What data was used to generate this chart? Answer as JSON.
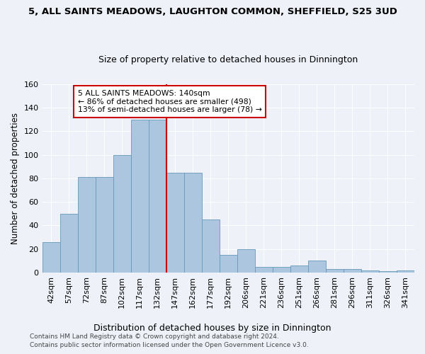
{
  "title_line1": "5, ALL SAINTS MEADOWS, LAUGHTON COMMON, SHEFFIELD, S25 3UD",
  "title_line2": "Size of property relative to detached houses in Dinnington",
  "xlabel": "Distribution of detached houses by size in Dinnington",
  "ylabel": "Number of detached properties",
  "footer_line1": "Contains HM Land Registry data © Crown copyright and database right 2024.",
  "footer_line2": "Contains public sector information licensed under the Open Government Licence v3.0.",
  "bin_labels": [
    "42sqm",
    "57sqm",
    "72sqm",
    "87sqm",
    "102sqm",
    "117sqm",
    "132sqm",
    "147sqm",
    "162sqm",
    "177sqm",
    "192sqm",
    "206sqm",
    "221sqm",
    "236sqm",
    "251sqm",
    "266sqm",
    "281sqm",
    "296sqm",
    "311sqm",
    "326sqm",
    "341sqm"
  ],
  "bar_heights": [
    26,
    50,
    81,
    81,
    100,
    130,
    130,
    85,
    85,
    45,
    15,
    20,
    5,
    5,
    6,
    10,
    3,
    3,
    2,
    1,
    2
  ],
  "bar_color": "#adc6e0",
  "bar_edge_color": "#6699bb",
  "vline_x_index": 6.5,
  "annotation_text": "5 ALL SAINTS MEADOWS: 140sqm\n← 86% of detached houses are smaller (498)\n13% of semi-detached houses are larger (78) →",
  "annotation_box_color": "#ffffff",
  "annotation_box_edge": "#cc0000",
  "vline_color": "#cc0000",
  "ylim": [
    0,
    160
  ],
  "yticks": [
    0,
    20,
    40,
    60,
    80,
    100,
    120,
    140,
    160
  ],
  "background_color": "#eef2f8"
}
